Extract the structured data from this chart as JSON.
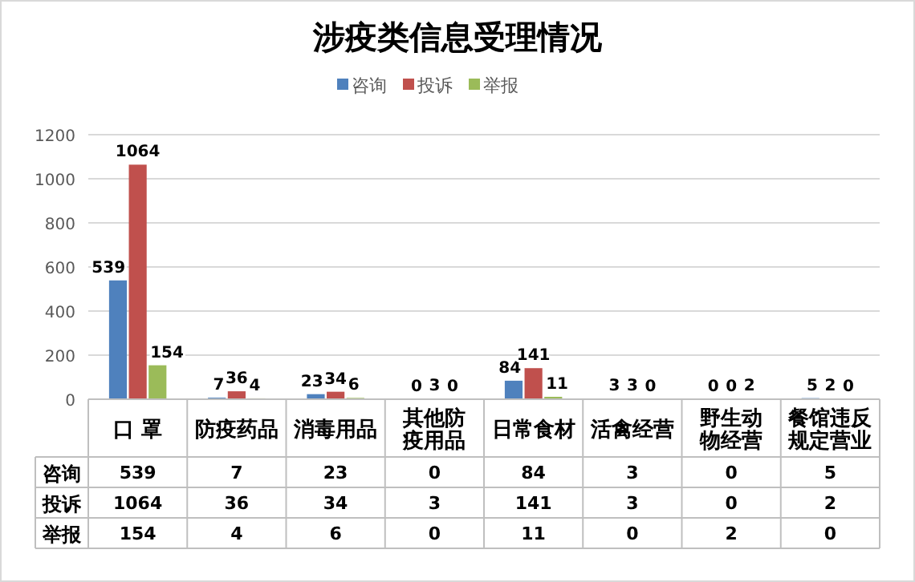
{
  "chart_data": {
    "type": "bar",
    "title": "涉疫类信息受理情况",
    "categories": [
      "口 罩",
      "防疫药品",
      "消毒用品",
      "其他防疫用品",
      "日常食材",
      "活禽经营",
      "野生动物经营",
      "餐馆违反规定营业"
    ],
    "series": [
      {
        "name": "咨询",
        "color": "#4f81bd",
        "values": [
          539,
          7,
          23,
          0,
          84,
          3,
          0,
          5
        ],
        "value_labels": [
          "539",
          "7",
          "23",
          "0",
          "84",
          "3",
          "0",
          "5"
        ]
      },
      {
        "name": "投诉",
        "color": "#c0504d",
        "values": [
          1064,
          36,
          34,
          3,
          141,
          3,
          0,
          2
        ],
        "value_labels": [
          "1064",
          "36",
          "34",
          "3",
          "141",
          "3",
          "0",
          "2"
        ]
      },
      {
        "name": "举报",
        "color": "#9bbb59",
        "values": [
          154,
          4,
          6,
          0,
          11,
          0,
          2,
          0
        ],
        "value_labels": [
          "154",
          "4",
          "6",
          "0",
          "11",
          "0",
          "2",
          "0"
        ]
      }
    ],
    "ylim": [
      0,
      1200
    ],
    "yticks": [
      0,
      200,
      400,
      600,
      800,
      1000,
      1200
    ],
    "grid": "y",
    "legend": "top"
  }
}
